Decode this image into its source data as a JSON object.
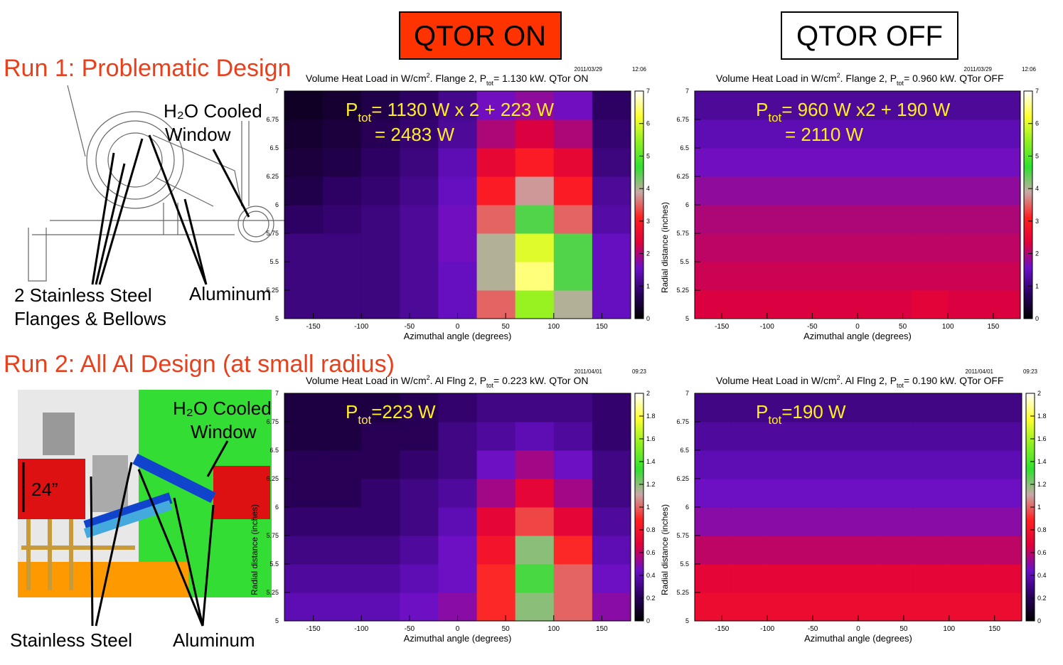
{
  "slide": {
    "header_on": "QTOR ON",
    "header_off": "QTOR OFF",
    "run1": "Run 1: Problematic Design",
    "run2": "Run 2: All Al Design (at small radius)",
    "run1_labels": {
      "window1": "H₂O Cooled",
      "window2": "Window",
      "steel1": "2 Stainless Steel",
      "steel2": "Flanges & Bellows",
      "aluminum": "Aluminum"
    },
    "run2_labels": {
      "window1": "H₂O Cooled",
      "window2": "Window",
      "size": "24”",
      "steel": "Stainless Steel",
      "aluminum": "Aluminum"
    }
  },
  "chart_data": [
    {
      "type": "heatmap",
      "title_parts": [
        "Volume Heat Load in W/cm",
        "2",
        ". Flange 2, P",
        "tot",
        "=  1.130 kW. QTor ON"
      ],
      "date": "2011/03/29",
      "time": "12:06",
      "annotation": {
        "p": "P",
        "sub": "tot",
        "text": "= 1130 W x 2 + 223 W"
      },
      "annotation2": "= 2483 W",
      "xlabel": "Azimuthal angle (degrees)",
      "xbins": [
        -180,
        -140,
        -100,
        -60,
        -20,
        20,
        60,
        100,
        140,
        180
      ],
      "ybins": [
        5,
        5.25,
        5.5,
        5.75,
        6,
        6.25,
        6.5,
        6.75,
        7
      ],
      "z": [
        [
          1,
          1,
          1,
          1.2,
          1.5,
          3.5,
          5.5,
          4,
          1.5
        ],
        [
          1,
          1,
          1,
          1.2,
          1.5,
          4,
          6.5,
          4.5,
          1.5
        ],
        [
          1,
          1,
          1,
          1.2,
          1.6,
          4,
          6,
          4.5,
          1.5
        ],
        [
          0.8,
          0.9,
          1,
          1.2,
          1.6,
          3.5,
          4.5,
          3.5,
          1.3
        ],
        [
          0.6,
          0.8,
          0.9,
          1.1,
          1.5,
          3,
          3.8,
          3,
          1.2
        ],
        [
          0.5,
          0.6,
          0.8,
          1,
          1.4,
          2.5,
          3,
          2.5,
          1
        ],
        [
          0.4,
          0.5,
          0.7,
          0.9,
          1.2,
          2,
          2.3,
          2,
          0.9
        ],
        [
          0.3,
          0.4,
          0.6,
          0.8,
          1.1,
          1.6,
          1.8,
          1.6,
          0.8
        ]
      ],
      "xlim": [
        -180,
        180
      ],
      "ylim": [
        5,
        7
      ],
      "xticks": [
        -150,
        -100,
        -50,
        0,
        50,
        100,
        150
      ],
      "yticks": [
        5,
        5.25,
        5.5,
        5.75,
        6,
        6.25,
        6.5,
        6.75,
        7
      ],
      "zlim": [
        0,
        7
      ],
      "zticks": [
        0,
        1,
        2,
        3,
        4,
        5,
        6,
        7
      ],
      "colorscale": [
        "#000000",
        "#2b0060",
        "#6a10c8",
        "#e0003a",
        "#ff2020",
        "#c8a8a8",
        "#30e030",
        "#90f020",
        "#ffff30",
        "#ffffff"
      ]
    },
    {
      "type": "heatmap",
      "title_parts": [
        "Volume Heat Load in W/cm",
        "2",
        ". Flange 2, P",
        "tot",
        "=  0.960 kW. QTor OFF"
      ],
      "date": "2011/03/29",
      "time": "12:06",
      "annotation": {
        "p": "P",
        "sub": "tot",
        "text": "= 960 W x2 + 190 W"
      },
      "annotation2": "= 2110 W",
      "xlabel": "Azimuthal angle (degrees)",
      "ylabel": "Radial distance (inches)",
      "xbins": [
        -180,
        -140,
        -100,
        -60,
        -20,
        20,
        60,
        100,
        140,
        180
      ],
      "ybins": [
        5,
        5.25,
        5.5,
        5.75,
        6,
        6.25,
        6.5,
        6.75,
        7
      ],
      "z": [
        [
          2.3,
          2.3,
          2.3,
          2.3,
          2.3,
          2.3,
          2.4,
          2.3,
          2.3
        ],
        [
          2.2,
          2.2,
          2.2,
          2.2,
          2.2,
          2.2,
          2.2,
          2.2,
          2.2
        ],
        [
          2.1,
          2.1,
          2.1,
          2.1,
          2.1,
          2.1,
          2.1,
          2.1,
          2.1
        ],
        [
          2,
          2,
          2,
          2,
          2,
          2,
          2,
          2,
          2
        ],
        [
          1.8,
          1.8,
          1.8,
          1.8,
          1.8,
          1.8,
          1.8,
          1.8,
          1.8
        ],
        [
          1.6,
          1.6,
          1.6,
          1.6,
          1.6,
          1.6,
          1.6,
          1.6,
          1.6
        ],
        [
          1.4,
          1.4,
          1.4,
          1.4,
          1.4,
          1.4,
          1.4,
          1.4,
          1.4
        ],
        [
          1.2,
          1.2,
          1.2,
          1.2,
          1.2,
          1.2,
          1.2,
          1.2,
          1.2
        ]
      ],
      "xlim": [
        -180,
        180
      ],
      "ylim": [
        5,
        7
      ],
      "xticks": [
        -150,
        -100,
        -50,
        0,
        50,
        100,
        150
      ],
      "yticks": [
        5,
        5.25,
        5.5,
        5.75,
        6,
        6.25,
        6.5,
        6.75,
        7
      ],
      "zlim": [
        0,
        7
      ],
      "zticks": [
        0,
        1,
        2,
        3,
        4,
        5,
        6,
        7
      ],
      "colorscale": [
        "#000000",
        "#2b0060",
        "#6a10c8",
        "#e0003a",
        "#ff2020",
        "#c8a8a8",
        "#30e030",
        "#90f020",
        "#ffff30",
        "#ffffff"
      ]
    },
    {
      "type": "heatmap",
      "title_parts": [
        "Volume Heat Load in W/cm",
        "2",
        ". Al Flng 2, P",
        "tot",
        "=  0.223 kW. QTor ON"
      ],
      "date": "2011/04/01",
      "time": "09:23",
      "annotation": {
        "p": "P",
        "sub": "tot",
        "text": "=223 W"
      },
      "xlabel": "Azimuthal angle (degrees)",
      "ylabel": "Radial distance (inches)",
      "xbins": [
        -180,
        -140,
        -100,
        -60,
        -20,
        20,
        60,
        100,
        140,
        180
      ],
      "ybins": [
        5,
        5.25,
        5.5,
        5.75,
        6,
        6.25,
        6.5,
        6.75,
        7
      ],
      "z": [
        [
          0.4,
          0.4,
          0.4,
          0.45,
          0.5,
          0.9,
          1.2,
          1,
          0.5
        ],
        [
          0.35,
          0.35,
          0.35,
          0.4,
          0.45,
          0.9,
          1.3,
          1,
          0.45
        ],
        [
          0.3,
          0.3,
          0.3,
          0.35,
          0.45,
          0.8,
          1.2,
          0.9,
          0.4
        ],
        [
          0.25,
          0.25,
          0.25,
          0.3,
          0.4,
          0.7,
          0.95,
          0.7,
          0.35
        ],
        [
          0.2,
          0.2,
          0.25,
          0.3,
          0.35,
          0.55,
          0.7,
          0.55,
          0.3
        ],
        [
          0.2,
          0.2,
          0.2,
          0.25,
          0.3,
          0.45,
          0.55,
          0.45,
          0.3
        ],
        [
          0.15,
          0.15,
          0.2,
          0.2,
          0.3,
          0.35,
          0.4,
          0.35,
          0.25
        ],
        [
          0.15,
          0.15,
          0.15,
          0.2,
          0.25,
          0.3,
          0.3,
          0.3,
          0.25
        ]
      ],
      "xlim": [
        -180,
        180
      ],
      "ylim": [
        5,
        7
      ],
      "xticks": [
        -150,
        -100,
        -50,
        0,
        50,
        100,
        150
      ],
      "yticks": [
        5,
        5.25,
        5.5,
        5.75,
        6,
        6.25,
        6.5,
        6.75,
        7
      ],
      "zlim": [
        0,
        2
      ],
      "zticks": [
        0,
        0.2,
        0.4,
        0.6,
        0.8,
        1,
        1.2,
        1.4,
        1.6,
        1.8,
        2
      ],
      "colorscale": [
        "#000000",
        "#2b0060",
        "#6a10c8",
        "#e0003a",
        "#ff2020",
        "#c8a8a8",
        "#30e030",
        "#90f020",
        "#ffff30",
        "#ffffff"
      ]
    },
    {
      "type": "heatmap",
      "title_parts": [
        "Volume Heat Load in W/cm",
        "2",
        ". Al Flng 2, P",
        "tot",
        "=  0.190 kW. QTor OFF"
      ],
      "date": "2011/04/01",
      "time": "09:23",
      "annotation": {
        "p": "P",
        "sub": "tot",
        "text": "=190 W"
      },
      "xlabel": "Azimuthal angle (degrees)",
      "ylabel": "Radial distance (inches)",
      "xbins": [
        -180,
        -140,
        -100,
        -60,
        -20,
        20,
        60,
        100,
        140,
        180
      ],
      "ybins": [
        5,
        5.25,
        5.5,
        5.75,
        6,
        6.25,
        6.5,
        6.75,
        7
      ],
      "z": [
        [
          0.75,
          0.75,
          0.75,
          0.75,
          0.75,
          0.75,
          0.75,
          0.75,
          0.75
        ],
        [
          0.7,
          0.7,
          0.7,
          0.7,
          0.7,
          0.7,
          0.7,
          0.7,
          0.7
        ],
        [
          0.6,
          0.6,
          0.6,
          0.6,
          0.6,
          0.6,
          0.6,
          0.6,
          0.6
        ],
        [
          0.5,
          0.5,
          0.5,
          0.5,
          0.5,
          0.5,
          0.5,
          0.5,
          0.5
        ],
        [
          0.45,
          0.45,
          0.45,
          0.45,
          0.45,
          0.45,
          0.45,
          0.45,
          0.45
        ],
        [
          0.4,
          0.4,
          0.4,
          0.4,
          0.4,
          0.4,
          0.4,
          0.4,
          0.4
        ],
        [
          0.35,
          0.35,
          0.35,
          0.35,
          0.35,
          0.35,
          0.35,
          0.35,
          0.35
        ],
        [
          0.3,
          0.3,
          0.3,
          0.3,
          0.3,
          0.3,
          0.3,
          0.3,
          0.3
        ]
      ],
      "xlim": [
        -180,
        180
      ],
      "ylim": [
        5,
        7
      ],
      "xticks": [
        -150,
        -100,
        -50,
        0,
        50,
        100,
        150
      ],
      "yticks": [
        5,
        5.25,
        5.5,
        5.75,
        6,
        6.25,
        6.5,
        6.75,
        7
      ],
      "zlim": [
        0,
        2
      ],
      "zticks": [
        0,
        0.2,
        0.4,
        0.6,
        0.8,
        1,
        1.2,
        1.4,
        1.6,
        1.8,
        2
      ],
      "colorscale": [
        "#000000",
        "#2b0060",
        "#6a10c8",
        "#e0003a",
        "#ff2020",
        "#c8a8a8",
        "#30e030",
        "#90f020",
        "#ffff30",
        "#ffffff"
      ]
    }
  ]
}
